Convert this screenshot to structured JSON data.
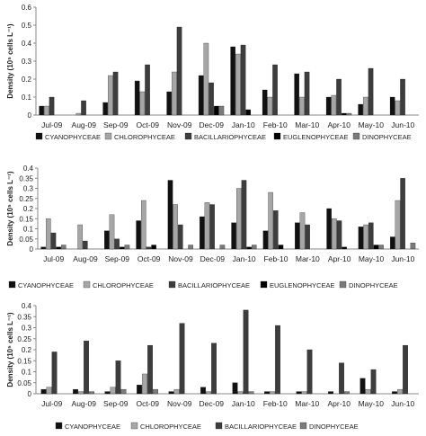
{
  "chart_data": [
    {
      "type": "bar",
      "ylabel": "Density (10⁵ cells L⁻¹)",
      "ylim": [
        0,
        0.6
      ],
      "yticks": [
        "0",
        "0.1",
        "0.2",
        "0.3",
        "0.4",
        "0.5",
        "0.6"
      ],
      "grid": false,
      "legend_position": "bottom",
      "categories": [
        "Jul-09",
        "Aug-09",
        "Sep-09",
        "Oct-09",
        "Nov-09",
        "Dec-09",
        "Jan-10",
        "Feb-10",
        "Mar-10",
        "Apr-10",
        "May-10",
        "Jun-10"
      ],
      "series": [
        {
          "name": "CYANOPHYCEAE",
          "color": "#111111",
          "values": [
            0.05,
            0.0,
            0.07,
            0.19,
            0.13,
            0.22,
            0.38,
            0.14,
            0.23,
            0.1,
            0.06,
            0.1
          ]
        },
        {
          "name": "CHLOROPHYCEAE",
          "color": "#a6a6a6",
          "values": [
            0.05,
            0.01,
            0.22,
            0.13,
            0.24,
            0.4,
            0.34,
            0.1,
            0.1,
            0.11,
            0.1,
            0.08
          ]
        },
        {
          "name": "BACILLARIOPHYCEAE",
          "color": "#3d3d3d",
          "values": [
            0.1,
            0.08,
            0.24,
            0.28,
            0.49,
            0.18,
            0.39,
            0.28,
            0.24,
            0.2,
            0.26,
            0.2
          ]
        },
        {
          "name": "EUGLENOPHYCEAE",
          "color": "#000000",
          "values": [
            0.0,
            0.0,
            0.0,
            0.0,
            0.0,
            0.05,
            0.03,
            0.0,
            0.0,
            0.01,
            0.0,
            0.0
          ]
        },
        {
          "name": "DINOPHYCEAE",
          "color": "#7a7a7a",
          "values": [
            0.0,
            0.0,
            0.0,
            0.0,
            0.0,
            0.05,
            0.0,
            0.0,
            0.0,
            0.01,
            0.0,
            0.0
          ]
        }
      ]
    },
    {
      "type": "bar",
      "ylabel": "Density (10⁵ cells L⁻¹)",
      "ylim": [
        0,
        0.4
      ],
      "yticks": [
        "0",
        "0.05",
        "0.1",
        "0.15",
        "0.2",
        "0.25",
        "0.3",
        "0.35",
        "0.4"
      ],
      "grid": false,
      "legend_position": "bottom",
      "categories": [
        "Jul-09",
        "Aug-09",
        "Sep-09",
        "Oct-09",
        "Nov-09",
        "Dec-09",
        "Jan-10",
        "Feb-10",
        "Mar-10",
        "Apr-10",
        "May-10",
        "Jun-10"
      ],
      "series": [
        {
          "name": "CYANOPHYCEAE",
          "color": "#111111",
          "values": [
            0.01,
            0.0,
            0.09,
            0.14,
            0.34,
            0.16,
            0.13,
            0.09,
            0.13,
            0.2,
            0.11,
            0.06
          ]
        },
        {
          "name": "CHLOROPHYCEAE",
          "color": "#a6a6a6",
          "values": [
            0.15,
            0.12,
            0.17,
            0.24,
            0.22,
            0.23,
            0.3,
            0.28,
            0.18,
            0.15,
            0.12,
            0.24
          ]
        },
        {
          "name": "BACILLARIOPHYCEAE",
          "color": "#3d3d3d",
          "values": [
            0.08,
            0.04,
            0.05,
            0.01,
            0.12,
            0.22,
            0.34,
            0.19,
            0.12,
            0.14,
            0.13,
            0.35
          ]
        },
        {
          "name": "EUGLENOPHYCEAE",
          "color": "#000000",
          "values": [
            0.01,
            0.0,
            0.01,
            0.02,
            0.0,
            0.0,
            0.01,
            0.02,
            0.0,
            0.01,
            0.02,
            0.0
          ]
        },
        {
          "name": "DINOPHYCEAE",
          "color": "#7a7a7a",
          "values": [
            0.02,
            0.0,
            0.02,
            0.0,
            0.02,
            0.02,
            0.02,
            0.0,
            0.0,
            0.0,
            0.02,
            0.03
          ]
        }
      ]
    },
    {
      "type": "bar",
      "ylabel": "Density (10⁵ cells L⁻¹)",
      "ylim": [
        0,
        0.4
      ],
      "yticks": [
        "0",
        "0.05",
        "0.1",
        "0.15",
        "0.2",
        "0.25",
        "0.3",
        "0.35",
        "0.4"
      ],
      "grid": false,
      "legend_position": "bottom",
      "categories": [
        "Jul-09",
        "Aug-09",
        "Sep-09",
        "Oct-09",
        "Nov-09",
        "Dec-09",
        "Jan-10",
        "Feb-10",
        "Mar-10",
        "Apr-10",
        "May-10",
        "Jun-10"
      ],
      "series": [
        {
          "name": "CYANOPHYCEAE",
          "color": "#111111",
          "values": [
            0.02,
            0.02,
            0.01,
            0.04,
            0.01,
            0.03,
            0.05,
            0.01,
            0.01,
            0.01,
            0.07,
            0.01
          ]
        },
        {
          "name": "CHLOROPHYCEAE",
          "color": "#a6a6a6",
          "values": [
            0.03,
            0.01,
            0.03,
            0.09,
            0.02,
            0.01,
            0.01,
            0.01,
            0.01,
            0.0,
            0.02,
            0.02
          ]
        },
        {
          "name": "BACILLARIOPHYCEAE",
          "color": "#3d3d3d",
          "values": [
            0.19,
            0.24,
            0.15,
            0.22,
            0.32,
            0.23,
            0.38,
            0.31,
            0.2,
            0.14,
            0.11,
            0.22
          ]
        },
        {
          "name": "DINOPHYCEAE",
          "color": "#7a7a7a",
          "values": [
            0.0,
            0.01,
            0.02,
            0.02,
            0.0,
            0.0,
            0.01,
            0.0,
            0.0,
            0.01,
            0.0,
            0.0
          ]
        }
      ]
    }
  ]
}
